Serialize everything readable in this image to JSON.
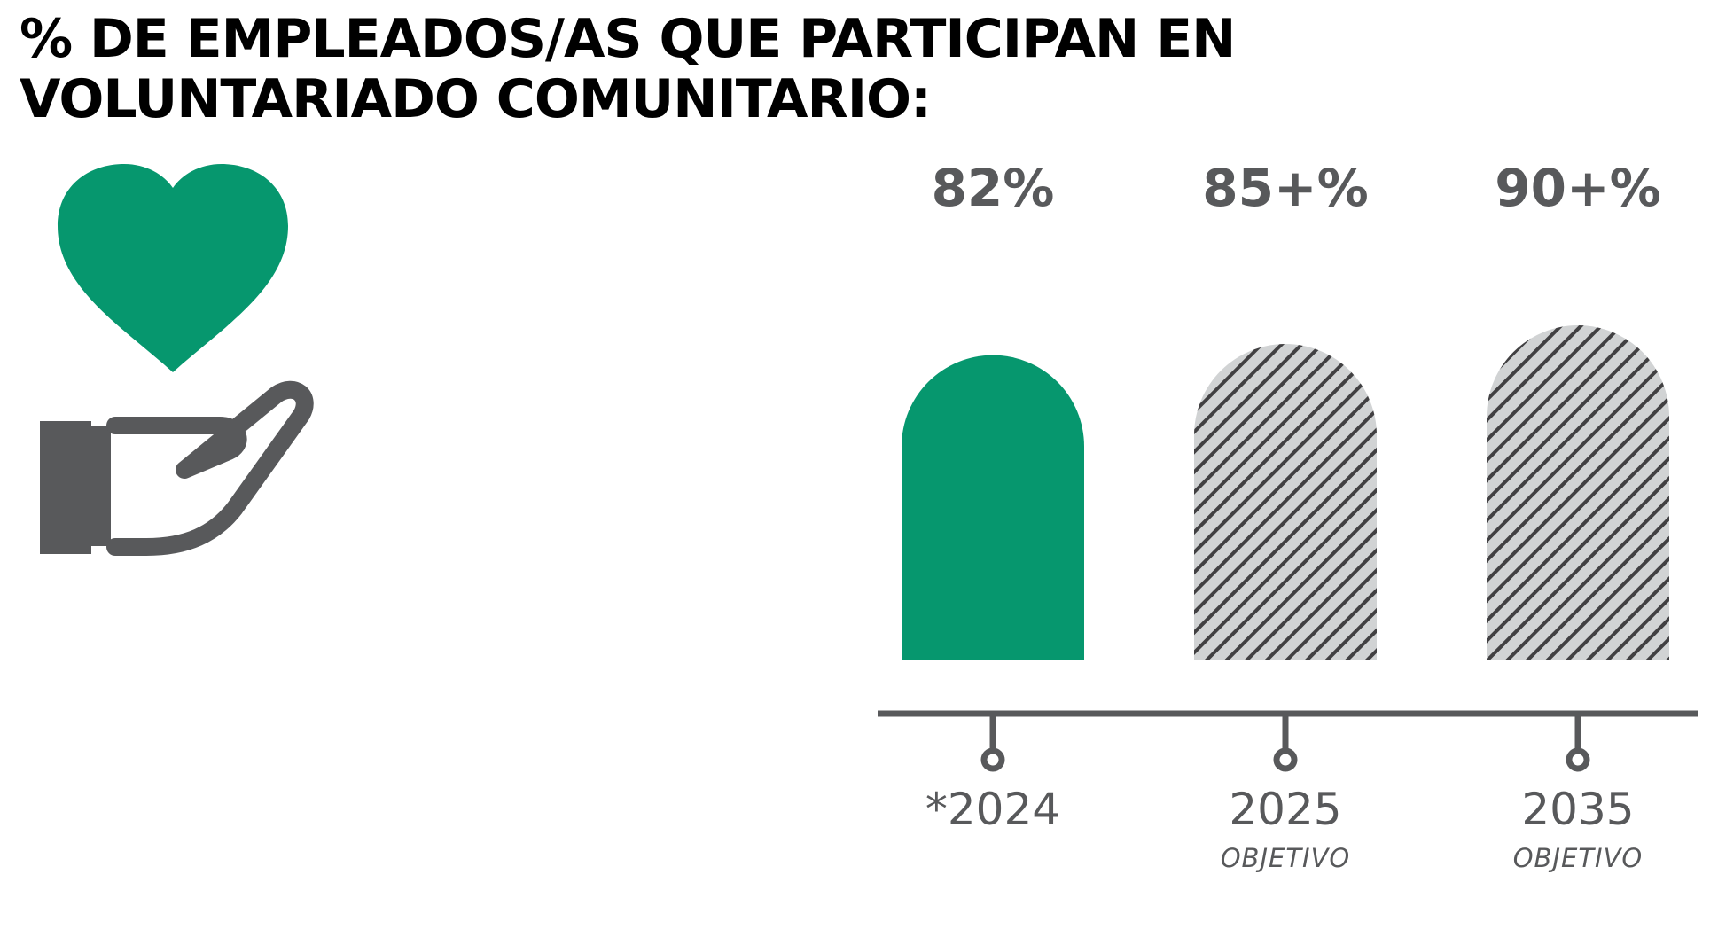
{
  "title_lines": [
    "% DE EMPLEADOS/AS QUE PARTICIPAN EN",
    "VOLUNTARIADO COMUNITARIO:"
  ],
  "icon": {
    "name": "hand-holding-heart-icon",
    "heart_color": "#06976e",
    "hand_color": "#58595b"
  },
  "colors": {
    "accent_green": "#06976e",
    "dark_gray": "#58595b",
    "hatch_background": "#d1d3d4",
    "hatch_line": "#414042"
  },
  "chart_data": {
    "type": "bar",
    "title": "% DE EMPLEADOS/AS QUE PARTICIPAN EN VOLUNTARIADO COMUNITARIO:",
    "categories": [
      "*2024",
      "2025",
      "2035"
    ],
    "subcategory_labels": [
      "",
      "OBJETIVO",
      "OBJETIVO"
    ],
    "values": [
      82,
      85,
      90
    ],
    "value_labels": [
      "82%",
      "85+%",
      "90+%"
    ],
    "bar_styles": [
      "solid",
      "hatched",
      "hatched"
    ],
    "ylim": [
      0,
      100
    ],
    "xlabel": "",
    "ylabel": "",
    "grid": false,
    "legend": "none"
  }
}
